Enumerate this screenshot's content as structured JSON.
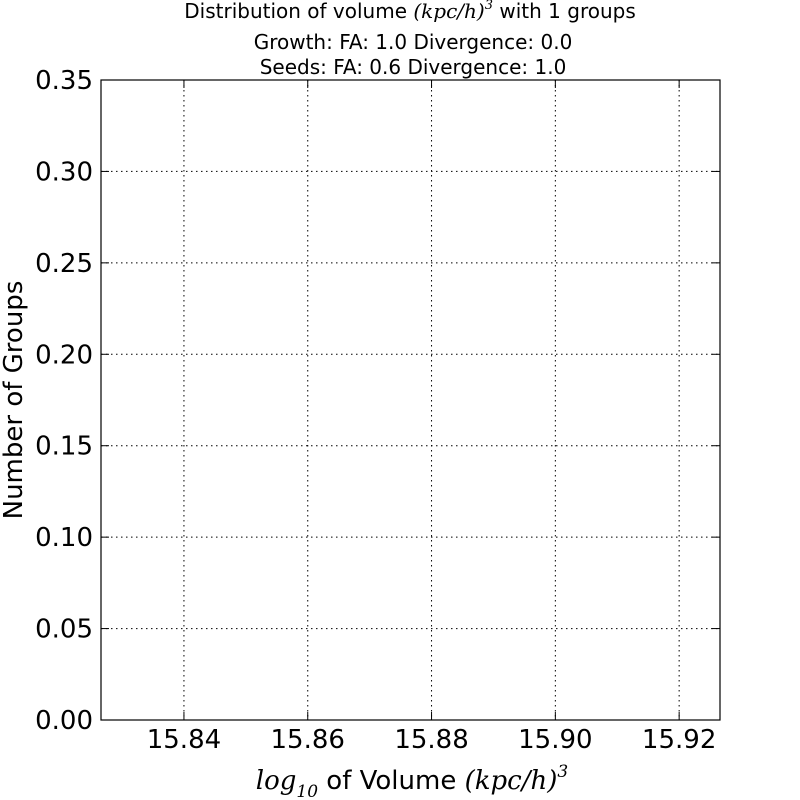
{
  "chart_data": {
    "type": "bar",
    "title": {
      "prefix": "Distribution of volume ",
      "unit_math": "(kpc/h)",
      "unit_exponent": "3",
      "suffix": "  with 1 groups"
    },
    "subtitles": [
      "Growth: FA: 1.0 Divergence: 0.0",
      "Seeds: FA: 0.6 Divergence: 1.0"
    ],
    "xlabel": {
      "math_prefix": "log",
      "math_subscript": "10",
      "text": " of Volume ",
      "unit_math": "(kpc/h)",
      "unit_exponent": "3"
    },
    "ylabel": "Number of Groups",
    "xlim": [
      15.8266,
      15.9266
    ],
    "ylim": [
      0.0,
      0.35
    ],
    "x_ticks": [
      15.84,
      15.86,
      15.88,
      15.9,
      15.92
    ],
    "x_tick_labels": [
      "15.84",
      "15.86",
      "15.88",
      "15.90",
      "15.92"
    ],
    "y_ticks": [
      0.0,
      0.05,
      0.1,
      0.15,
      0.2,
      0.25,
      0.3,
      0.35
    ],
    "y_tick_labels": [
      "0.00",
      "0.05",
      "0.10",
      "0.15",
      "0.20",
      "0.25",
      "0.30",
      "0.35"
    ],
    "grid": true,
    "grid_style": "dotted",
    "series": []
  }
}
